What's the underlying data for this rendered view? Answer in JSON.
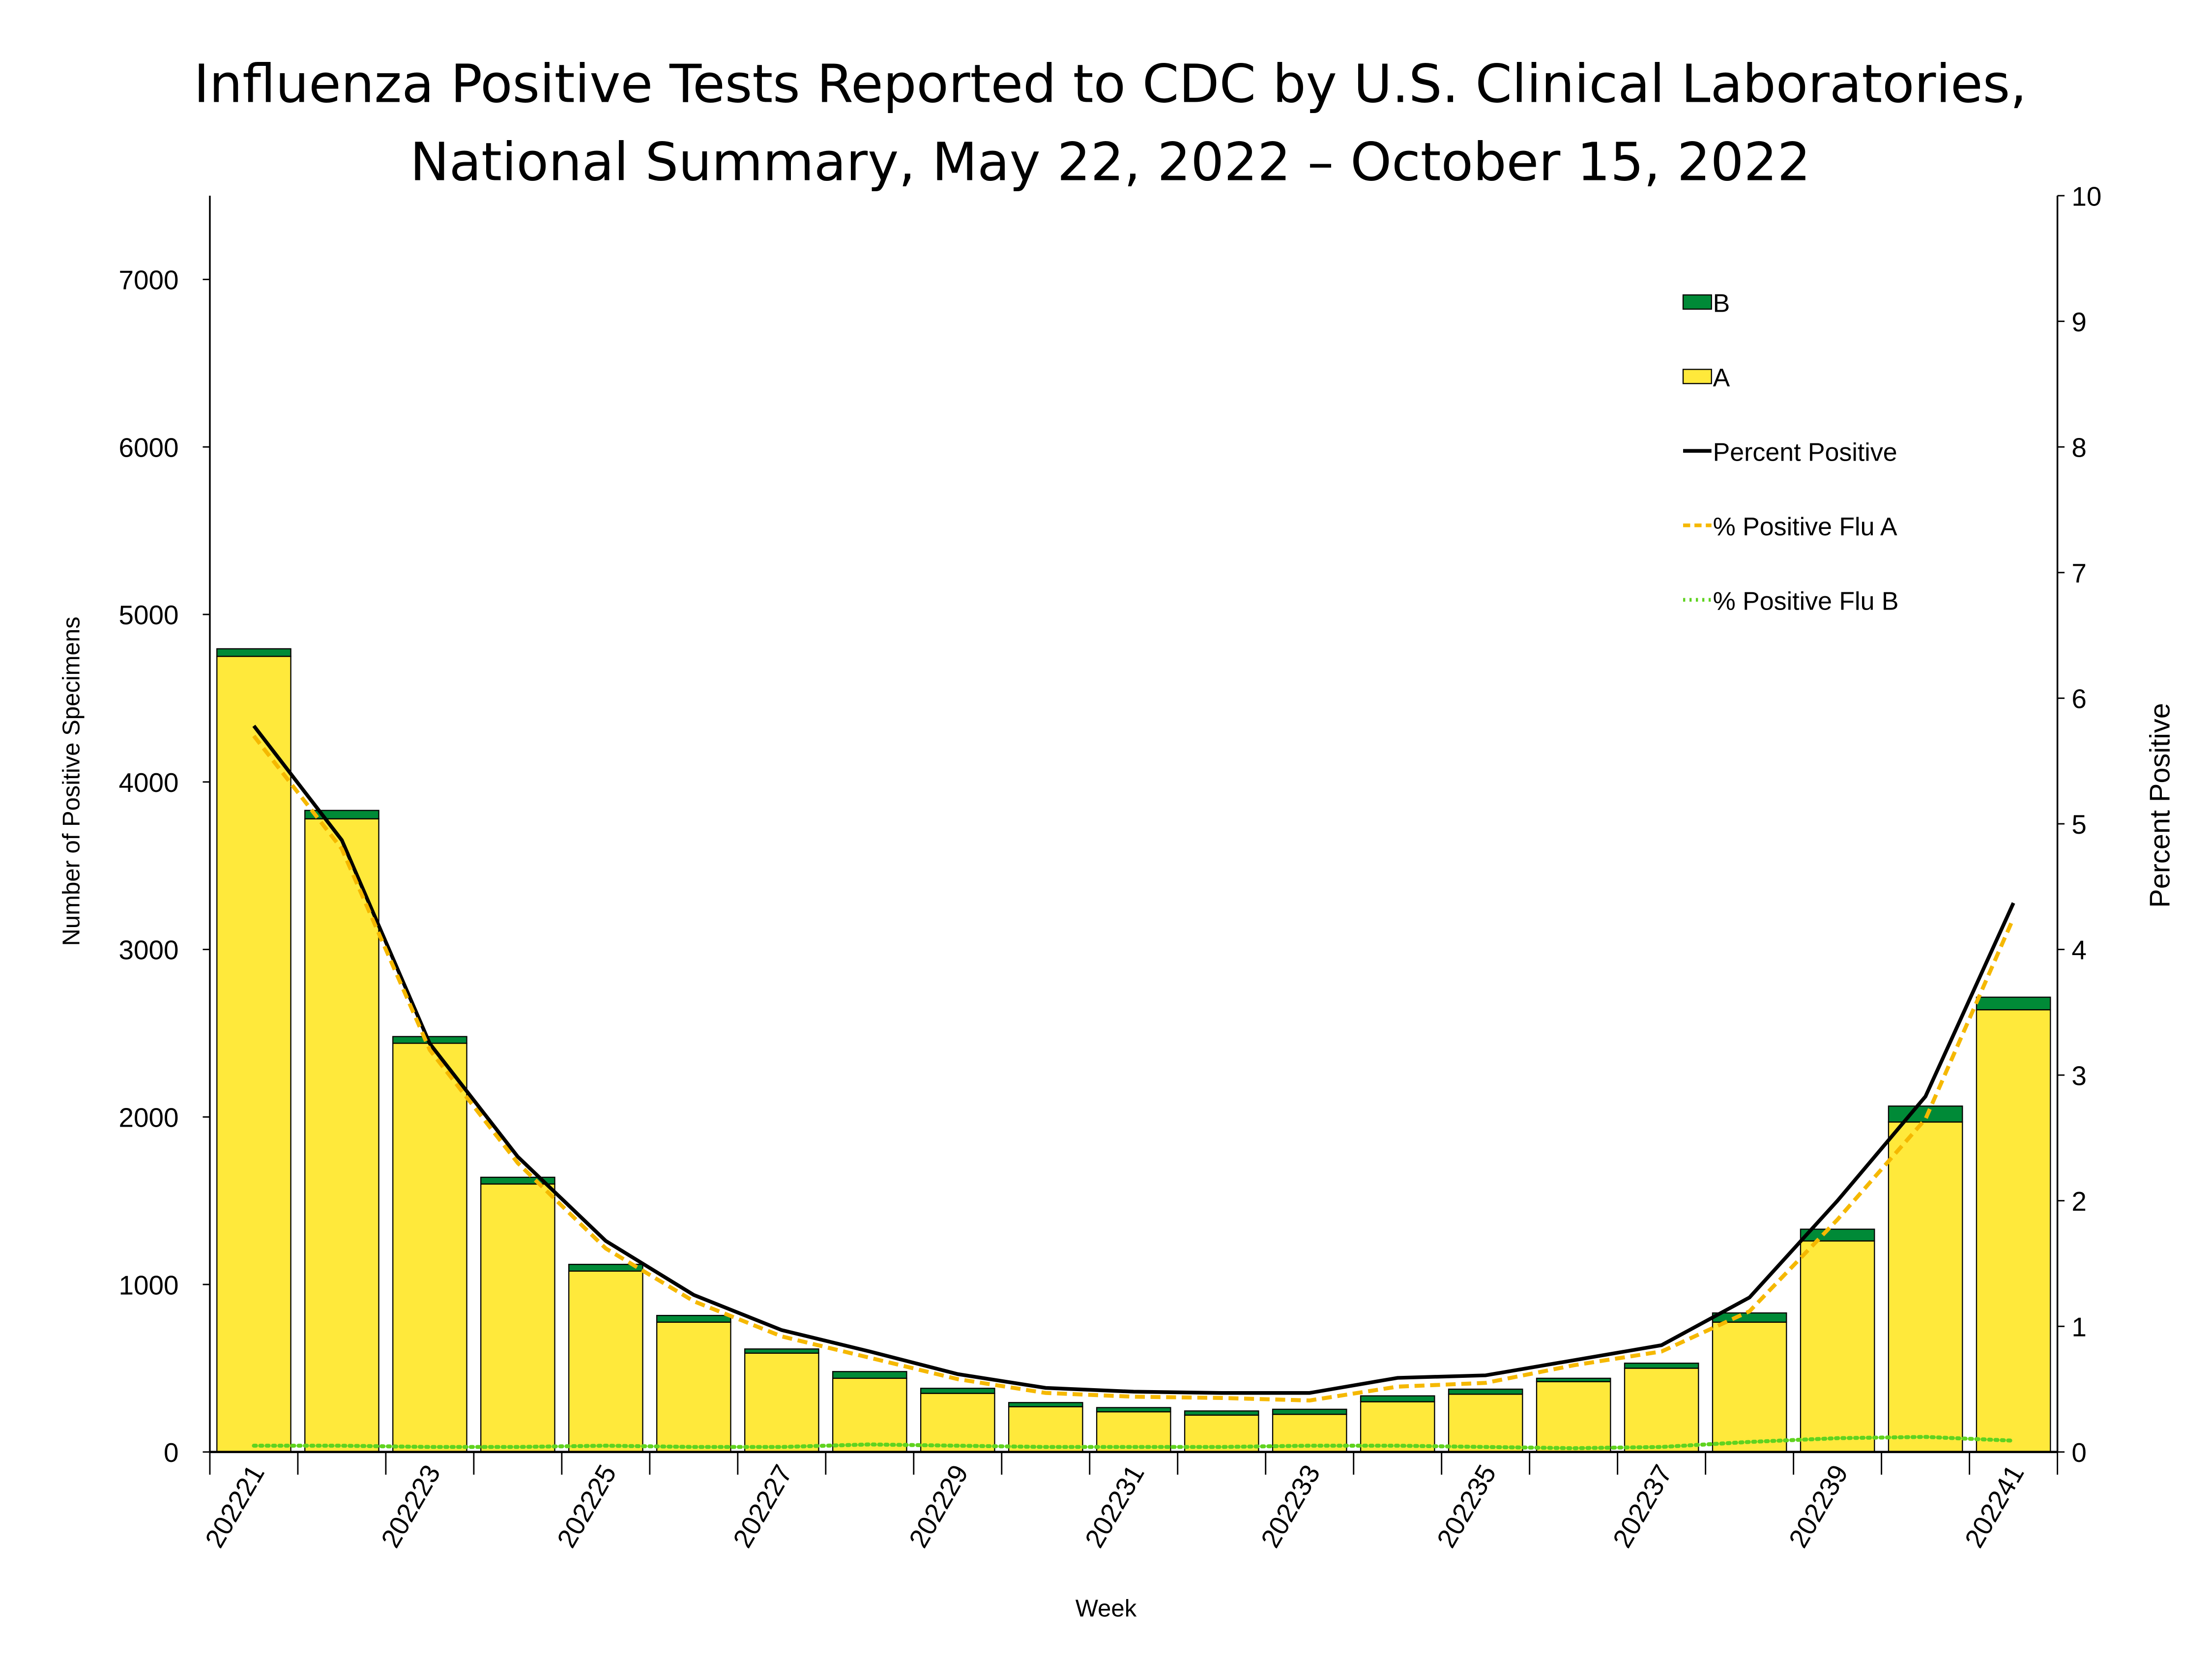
{
  "chart_data": {
    "type": "bar",
    "stacked": true,
    "title": [
      "Influenza Positive Tests Reported to CDC by U.S. Clinical Laboratories,",
      "National Summary, May 22, 2022 – October 15, 2022"
    ],
    "xlabel": "Week",
    "ylabel": "Number of Positive Specimens",
    "y2label": "Percent Positive",
    "ylim": [
      0,
      7500
    ],
    "y2lim": [
      0,
      10
    ],
    "yticks": [
      0,
      1000,
      2000,
      3000,
      4000,
      5000,
      6000,
      7000
    ],
    "y2ticks": [
      0,
      1,
      2,
      3,
      4,
      5,
      6,
      7,
      8,
      9,
      10
    ],
    "grid": false,
    "legend_position": "top-right",
    "categories": [
      "202221",
      "202222",
      "202223",
      "202224",
      "202225",
      "202226",
      "202227",
      "202228",
      "202229",
      "202230",
      "202231",
      "202232",
      "202233",
      "202234",
      "202235",
      "202236",
      "202237",
      "202238",
      "202239",
      "202240",
      "202241"
    ],
    "xtick_labels": [
      "202221",
      "202223",
      "202225",
      "202227",
      "202229",
      "202231",
      "202233",
      "202235",
      "202237",
      "202239",
      "202241"
    ],
    "series": [
      {
        "name": "A",
        "kind": "bar",
        "axis": "left",
        "color": "#FFE93B",
        "values": [
          4750,
          3780,
          2440,
          1600,
          1080,
          775,
          590,
          440,
          350,
          270,
          240,
          220,
          225,
          300,
          345,
          420,
          500,
          775,
          1260,
          1970,
          2640
        ]
      },
      {
        "name": "B",
        "kind": "bar",
        "axis": "left",
        "color": "#008A37",
        "values": [
          45,
          50,
          40,
          40,
          40,
          40,
          25,
          40,
          30,
          25,
          25,
          25,
          30,
          35,
          30,
          20,
          30,
          55,
          70,
          95,
          75
        ]
      },
      {
        "name": "Percent Positive",
        "kind": "line",
        "axis": "right",
        "color": "#000000",
        "dash": "solid",
        "values": [
          5.78,
          4.87,
          3.25,
          2.35,
          1.68,
          1.25,
          0.97,
          0.8,
          0.62,
          0.51,
          0.48,
          0.47,
          0.47,
          0.59,
          0.61,
          0.73,
          0.85,
          1.23,
          2.0,
          2.83,
          4.37
        ]
      },
      {
        "name": "% Positive Flu A",
        "kind": "line",
        "axis": "right",
        "color": "#F5B800",
        "dash": "dashed",
        "values": [
          5.7,
          4.8,
          3.2,
          2.3,
          1.62,
          1.2,
          0.92,
          0.75,
          0.58,
          0.47,
          0.44,
          0.43,
          0.41,
          0.52,
          0.55,
          0.69,
          0.8,
          1.12,
          1.85,
          2.65,
          4.25
        ]
      },
      {
        "name": "% Positive Flu B",
        "kind": "line",
        "axis": "right",
        "color": "#5FD31F",
        "dash": "dotted",
        "values": [
          0.05,
          0.05,
          0.04,
          0.04,
          0.05,
          0.04,
          0.04,
          0.06,
          0.05,
          0.04,
          0.04,
          0.04,
          0.05,
          0.05,
          0.04,
          0.03,
          0.04,
          0.08,
          0.11,
          0.12,
          0.09
        ]
      }
    ],
    "legend_order": [
      "B",
      "A",
      "Percent Positive",
      "% Positive Flu A",
      "% Positive Flu B"
    ]
  }
}
